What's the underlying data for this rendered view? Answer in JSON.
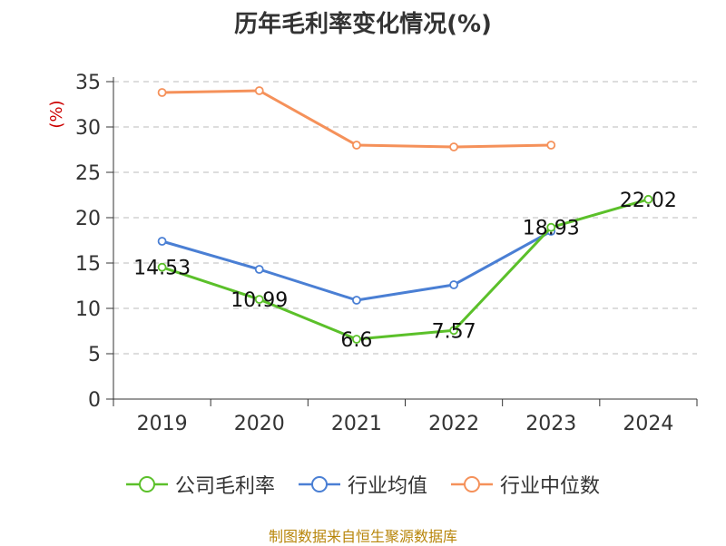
{
  "chart_data": {
    "type": "line",
    "title": "历年毛利率变化情况(%)",
    "ylabel": "(%)",
    "categories": [
      "2019",
      "2020",
      "2021",
      "2022",
      "2023",
      "2024"
    ],
    "ylim": [
      0,
      35
    ],
    "yticks": [
      0,
      5,
      10,
      15,
      20,
      25,
      30,
      35
    ],
    "grid": true,
    "legend_position": "bottom",
    "series": [
      {
        "name": "公司毛利率",
        "color": "#5bc02a",
        "values": [
          14.53,
          10.99,
          6.6,
          7.57,
          18.93,
          22.02
        ],
        "labels": [
          "14.53",
          "10.99",
          "6.6",
          "7.57",
          "18.93",
          "22.02"
        ]
      },
      {
        "name": "行业均值",
        "color": "#4a7fd4",
        "values": [
          17.4,
          14.3,
          10.9,
          12.6,
          18.5,
          null
        ]
      },
      {
        "name": "行业中位数",
        "color": "#f5915a",
        "values": [
          33.8,
          34.0,
          28.0,
          27.8,
          28.0,
          null
        ]
      }
    ]
  },
  "source": "制图数据来自恒生聚源数据库"
}
